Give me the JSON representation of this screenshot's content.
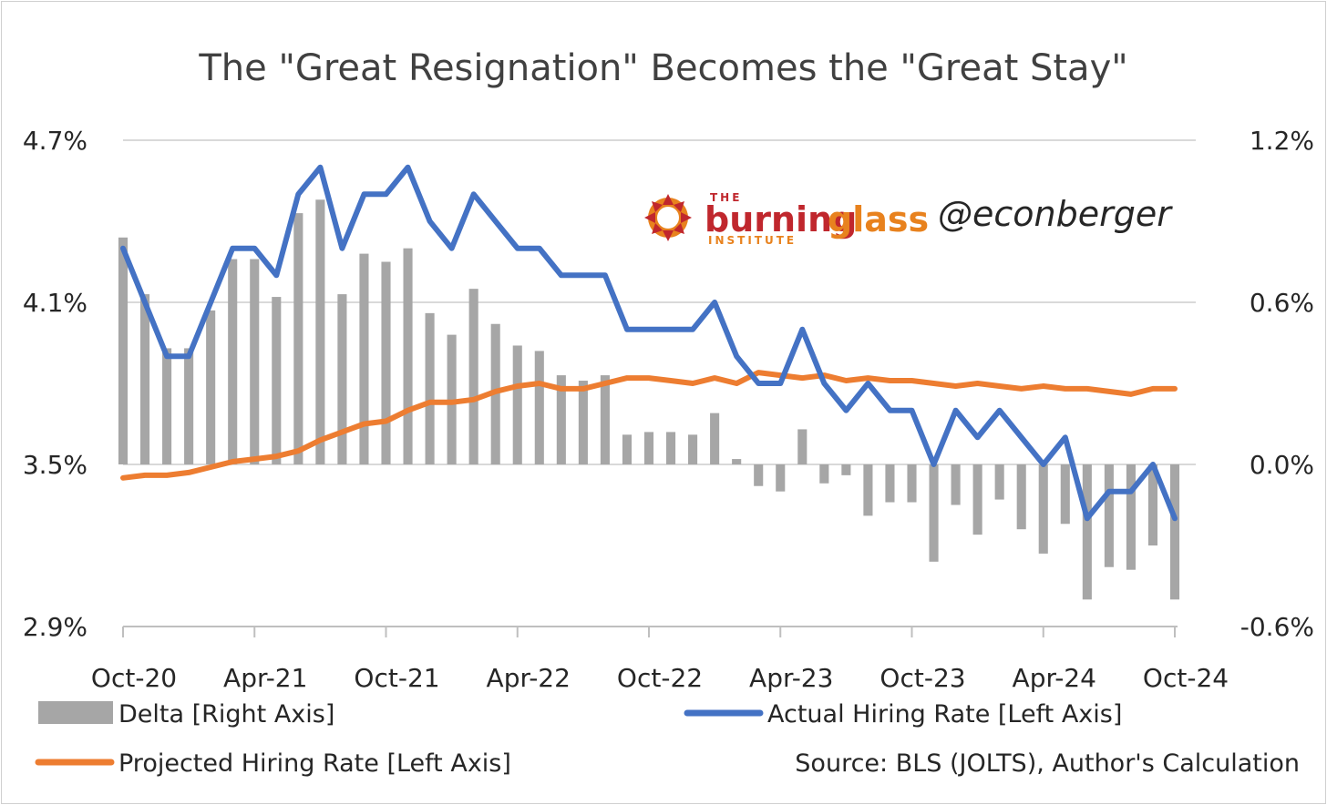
{
  "chart_data": {
    "type": "bar+line",
    "title": "The \"Great Resignation\" Becomes the \"Great Stay\"",
    "left_axis": {
      "ticks": [
        "4.7%",
        "4.1%",
        "3.5%",
        "2.9%"
      ],
      "range": [
        2.9,
        4.7
      ]
    },
    "right_axis": {
      "ticks": [
        "1.2%",
        "0.6%",
        "0.0%",
        "-0.6%"
      ],
      "range": [
        -0.6,
        1.2
      ]
    },
    "x_ticks": [
      "Oct-20",
      "Apr-21",
      "Oct-21",
      "Apr-22",
      "Oct-22",
      "Apr-23",
      "Oct-23",
      "Apr-24",
      "Oct-24"
    ],
    "x_start": "Oct-20",
    "x_end": "Oct-24",
    "grid": true,
    "series": [
      {
        "name": "Delta [Right Axis]",
        "kind": "bar",
        "axis": "right",
        "color": "#a6a6a6",
        "values": [
          0.84,
          0.63,
          0.43,
          0.43,
          0.57,
          0.76,
          0.76,
          0.62,
          0.93,
          0.98,
          0.63,
          0.78,
          0.75,
          0.8,
          0.56,
          0.48,
          0.65,
          0.52,
          0.44,
          0.42,
          0.33,
          0.31,
          0.33,
          0.11,
          0.12,
          0.12,
          0.11,
          0.19,
          0.02,
          -0.08,
          -0.1,
          0.13,
          -0.07,
          -0.04,
          -0.19,
          -0.14,
          -0.14,
          -0.36,
          -0.15,
          -0.26,
          -0.13,
          -0.24,
          -0.33,
          -0.22,
          -0.5,
          -0.38,
          -0.39,
          -0.3,
          -0.5
        ]
      },
      {
        "name": "Actual Hiring Rate [Left Axis]",
        "kind": "line",
        "axis": "left",
        "color": "#4472c4",
        "values": [
          4.3,
          4.1,
          3.9,
          3.9,
          4.1,
          4.3,
          4.3,
          4.2,
          4.5,
          4.6,
          4.3,
          4.5,
          4.5,
          4.6,
          4.4,
          4.3,
          4.5,
          4.4,
          4.3,
          4.3,
          4.2,
          4.2,
          4.2,
          4.0,
          4.0,
          4.0,
          4.0,
          4.1,
          3.9,
          3.8,
          3.8,
          4.0,
          3.8,
          3.7,
          3.8,
          3.7,
          3.7,
          3.5,
          3.7,
          3.6,
          3.7,
          3.6,
          3.5,
          3.6,
          3.3,
          3.4,
          3.4,
          3.5,
          3.3
        ]
      },
      {
        "name": "Projected Hiring Rate [Left Axis]",
        "kind": "line",
        "axis": "left",
        "color": "#ed7d31",
        "values": [
          3.45,
          3.46,
          3.46,
          3.47,
          3.49,
          3.51,
          3.52,
          3.53,
          3.55,
          3.59,
          3.62,
          3.65,
          3.66,
          3.7,
          3.73,
          3.73,
          3.74,
          3.77,
          3.79,
          3.8,
          3.78,
          3.78,
          3.8,
          3.82,
          3.82,
          3.81,
          3.8,
          3.82,
          3.8,
          3.84,
          3.83,
          3.82,
          3.83,
          3.81,
          3.82,
          3.81,
          3.81,
          3.8,
          3.79,
          3.8,
          3.79,
          3.78,
          3.79,
          3.78,
          3.78,
          3.77,
          3.76,
          3.78,
          3.78
        ]
      }
    ],
    "source": "Source: BLS (JOLTS), Author's Calculation"
  },
  "logo": {
    "small_top": "THE",
    "word_a": "burning",
    "word_b": "glass",
    "small_bottom": "INSTITUTE",
    "handle": "@econberger",
    "red": "#c0272d",
    "orange": "#e8821e"
  }
}
